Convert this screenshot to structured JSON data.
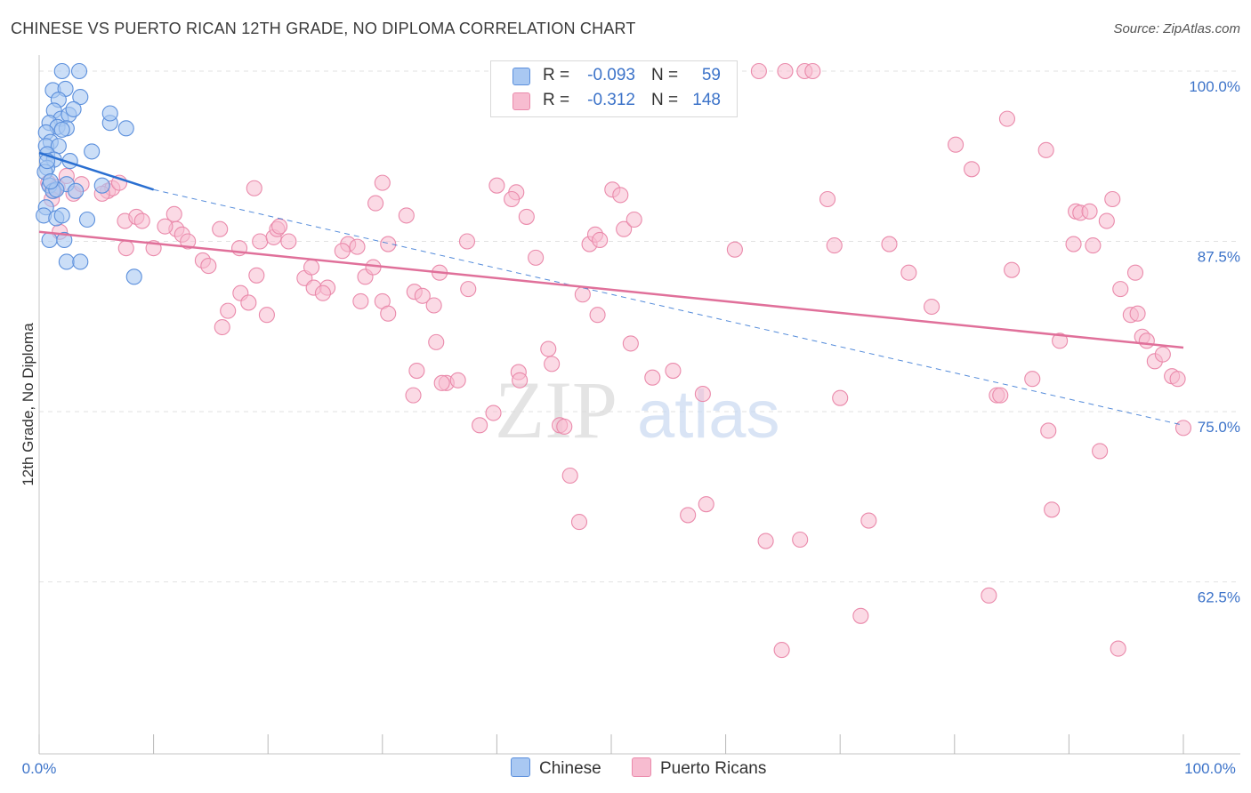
{
  "title": "CHINESE VS PUERTO RICAN 12TH GRADE, NO DIPLOMA CORRELATION CHART",
  "source": "Source: ZipAtlas.com",
  "watermark": {
    "zip": "ZIP",
    "atlas": "atlas"
  },
  "colors": {
    "chinese_fill": "#a9c8f2",
    "chinese_stroke": "#5b8fdc",
    "chinese_line": "#2a6fd1",
    "pr_fill": "#f7bcd0",
    "pr_stroke": "#ea8aab",
    "pr_line": "#e0709a",
    "axis_tick_text": "#3c73c9",
    "grid": "#e2e2e2"
  },
  "legend": {
    "rows": [
      {
        "r_label": "R =",
        "r_value": "-0.093",
        "n_label": "N =",
        "n_value": "59"
      },
      {
        "r_label": "R =",
        "r_value": "-0.312",
        "n_label": "N =",
        "n_value": "148"
      }
    ]
  },
  "chart_data": {
    "type": "scatter",
    "title": "CHINESE VS PUERTO RICAN 12TH GRADE, NO DIPLOMA CORRELATION CHART",
    "xlabel": "",
    "ylabel": "12th Grade, No Diploma",
    "xlim": [
      0,
      100
    ],
    "ylim": [
      50,
      101.5
    ],
    "x_tick_labels": [
      "0.0%",
      "100.0%"
    ],
    "y_ticks": [
      100,
      87.5,
      75,
      62.5
    ],
    "y_tick_labels": [
      "100.0%",
      "87.5%",
      "75.0%",
      "62.5%"
    ],
    "grid": true,
    "legend_position": "bottom",
    "series": [
      {
        "name": "Chinese",
        "r": -0.093,
        "n": 59,
        "trend": {
          "x": [
            0,
            10
          ],
          "y": [
            94.0,
            91.3
          ],
          "dashed_extension_to": [
            100,
            74.0
          ]
        },
        "points": [
          [
            2,
            100
          ],
          [
            3.5,
            100
          ],
          [
            1.2,
            98.6
          ],
          [
            2.3,
            98.7
          ],
          [
            1.7,
            97.9
          ],
          [
            3.6,
            98.1
          ],
          [
            1.3,
            97.1
          ],
          [
            1.9,
            96.5
          ],
          [
            2.6,
            96.8
          ],
          [
            0.9,
            96.2
          ],
          [
            1.6,
            95.9
          ],
          [
            2.4,
            95.8
          ],
          [
            6.2,
            96.2
          ],
          [
            7.6,
            95.8
          ],
          [
            0.6,
            95.5
          ],
          [
            2.0,
            95.7
          ],
          [
            1.0,
            94.8
          ],
          [
            0.6,
            94.5
          ],
          [
            1.7,
            94.5
          ],
          [
            4.6,
            94.1
          ],
          [
            0.7,
            93.9
          ],
          [
            1.3,
            93.5
          ],
          [
            2.7,
            93.4
          ],
          [
            0.7,
            92.9
          ],
          [
            0.5,
            92.6
          ],
          [
            0.9,
            91.6
          ],
          [
            1.2,
            91.2
          ],
          [
            2.4,
            91.7
          ],
          [
            3.2,
            91.2
          ],
          [
            0.6,
            90.0
          ],
          [
            0.4,
            89.4
          ],
          [
            1.5,
            89.2
          ],
          [
            2.0,
            89.4
          ],
          [
            4.2,
            89.1
          ],
          [
            0.9,
            87.6
          ],
          [
            2.2,
            87.6
          ],
          [
            2.4,
            86.0
          ],
          [
            3.6,
            86.0
          ],
          [
            8.3,
            84.9
          ],
          [
            5.5,
            91.6
          ],
          [
            1.5,
            91.3
          ],
          [
            6.2,
            96.9
          ],
          [
            3.0,
            97.2
          ],
          [
            1.0,
            91.9
          ],
          [
            0.7,
            93.4
          ]
        ]
      },
      {
        "name": "Puerto Ricans",
        "r": -0.312,
        "n": 148,
        "trend": {
          "x": [
            0,
            100
          ],
          "y": [
            88.2,
            79.7
          ]
        },
        "points": [
          [
            0.8,
            91.8
          ],
          [
            1.6,
            91.5
          ],
          [
            3.0,
            91.0
          ],
          [
            1.3,
            91.2
          ],
          [
            2.4,
            92.3
          ],
          [
            3.7,
            91.7
          ],
          [
            6.0,
            91.2
          ],
          [
            6.4,
            91.4
          ],
          [
            7.0,
            91.8
          ],
          [
            1.1,
            90.6
          ],
          [
            5.5,
            91.0
          ],
          [
            7.5,
            89.0
          ],
          [
            8.5,
            89.3
          ],
          [
            9.0,
            89.0
          ],
          [
            7.6,
            87.0
          ],
          [
            10.0,
            87.0
          ],
          [
            11.8,
            89.5
          ],
          [
            12.0,
            88.4
          ],
          [
            11.0,
            88.6
          ],
          [
            12.5,
            88.0
          ],
          [
            13.0,
            87.5
          ],
          [
            14.3,
            86.1
          ],
          [
            14.8,
            85.7
          ],
          [
            15.8,
            88.4
          ],
          [
            18.8,
            91.4
          ],
          [
            19.3,
            87.5
          ],
          [
            20.5,
            87.8
          ],
          [
            20.8,
            88.4
          ],
          [
            17.5,
            87.0
          ],
          [
            21.8,
            87.5
          ],
          [
            21.0,
            88.6
          ],
          [
            16.5,
            82.4
          ],
          [
            19.0,
            85.0
          ],
          [
            16.0,
            81.2
          ],
          [
            17.6,
            83.7
          ],
          [
            18.3,
            83.0
          ],
          [
            19.9,
            82.1
          ],
          [
            23.2,
            84.8
          ],
          [
            23.8,
            85.6
          ],
          [
            24.0,
            84.1
          ],
          [
            25.2,
            84.1
          ],
          [
            24.8,
            83.7
          ],
          [
            27.0,
            87.3
          ],
          [
            26.5,
            86.8
          ],
          [
            27.8,
            87.1
          ],
          [
            28.5,
            84.9
          ],
          [
            28.1,
            83.1
          ],
          [
            29.2,
            85.6
          ],
          [
            30.0,
            83.1
          ],
          [
            30.5,
            82.2
          ],
          [
            30.0,
            91.8
          ],
          [
            29.4,
            90.3
          ],
          [
            32.1,
            89.4
          ],
          [
            32.8,
            83.8
          ],
          [
            33.5,
            83.5
          ],
          [
            34.5,
            82.8
          ],
          [
            35.0,
            85.2
          ],
          [
            33.0,
            78.0
          ],
          [
            32.7,
            76.2
          ],
          [
            34.7,
            80.1
          ],
          [
            35.6,
            77.1
          ],
          [
            36.6,
            77.3
          ],
          [
            35.2,
            77.1
          ],
          [
            37.4,
            87.5
          ],
          [
            37.5,
            84.0
          ],
          [
            38.5,
            74.0
          ],
          [
            39.7,
            74.9
          ],
          [
            41.9,
            77.9
          ],
          [
            42.0,
            77.3
          ],
          [
            41.7,
            91.1
          ],
          [
            41.3,
            90.6
          ],
          [
            42.6,
            89.3
          ],
          [
            43.4,
            86.3
          ],
          [
            44.5,
            79.6
          ],
          [
            44.8,
            78.5
          ],
          [
            45.5,
            74.0
          ],
          [
            45.9,
            73.9
          ],
          [
            46.4,
            70.3
          ],
          [
            47.2,
            66.9
          ],
          [
            48.1,
            87.3
          ],
          [
            48.6,
            88.0
          ],
          [
            47.5,
            83.6
          ],
          [
            49.0,
            87.6
          ],
          [
            50.1,
            91.3
          ],
          [
            51.1,
            88.4
          ],
          [
            50.8,
            90.9
          ],
          [
            52.0,
            89.1
          ],
          [
            48.8,
            82.1
          ],
          [
            51.7,
            80.0
          ],
          [
            53.6,
            77.5
          ],
          [
            55.4,
            78.0
          ],
          [
            56.7,
            67.4
          ],
          [
            58.3,
            68.2
          ],
          [
            58.0,
            76.3
          ],
          [
            60.8,
            86.9
          ],
          [
            62.9,
            100
          ],
          [
            65.2,
            100
          ],
          [
            66.9,
            100
          ],
          [
            67.6,
            100
          ],
          [
            63.5,
            65.5
          ],
          [
            66.5,
            65.6
          ],
          [
            64.9,
            57.5
          ],
          [
            68.9,
            90.6
          ],
          [
            69.5,
            87.2
          ],
          [
            71.8,
            60.0
          ],
          [
            72.5,
            67.0
          ],
          [
            74.3,
            87.3
          ],
          [
            76.0,
            85.2
          ],
          [
            78.0,
            82.7
          ],
          [
            80.1,
            94.6
          ],
          [
            81.5,
            92.8
          ],
          [
            83.0,
            61.5
          ],
          [
            83.7,
            76.2
          ],
          [
            84.0,
            76.2
          ],
          [
            84.6,
            96.5
          ],
          [
            85.0,
            85.4
          ],
          [
            86.8,
            77.4
          ],
          [
            88.0,
            94.2
          ],
          [
            88.2,
            73.6
          ],
          [
            88.5,
            67.8
          ],
          [
            89.2,
            80.2
          ],
          [
            90.4,
            87.3
          ],
          [
            90.6,
            89.7
          ],
          [
            91.0,
            89.6
          ],
          [
            91.8,
            89.7
          ],
          [
            92.1,
            87.2
          ],
          [
            92.7,
            72.1
          ],
          [
            93.3,
            89.0
          ],
          [
            93.8,
            90.6
          ],
          [
            94.3,
            57.6
          ],
          [
            94.5,
            84.0
          ],
          [
            95.4,
            82.1
          ],
          [
            95.8,
            85.2
          ],
          [
            96.4,
            80.5
          ],
          [
            96.8,
            80.2
          ],
          [
            97.5,
            78.7
          ],
          [
            98.2,
            79.2
          ],
          [
            99.0,
            77.6
          ],
          [
            99.5,
            77.4
          ],
          [
            100,
            73.8
          ],
          [
            96.0,
            82.2
          ],
          [
            70.0,
            76.0
          ],
          [
            40.0,
            91.6
          ],
          [
            1.8,
            88.2
          ],
          [
            30.5,
            87.3
          ]
        ]
      }
    ]
  },
  "bottom_legend": [
    {
      "label": "Chinese"
    },
    {
      "label": "Puerto Ricans"
    }
  ]
}
